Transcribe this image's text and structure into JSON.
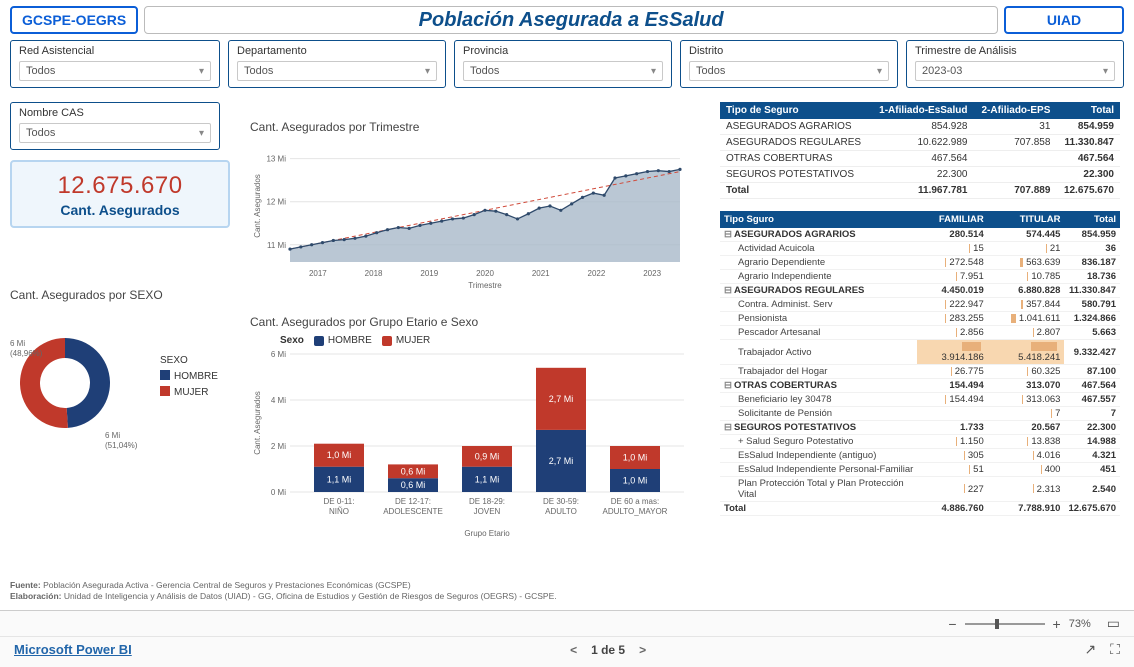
{
  "header": {
    "left_badge": "GCSPE-OEGRS",
    "title": "Población Asegurada a EsSalud",
    "right_badge": "UIAD"
  },
  "filters": {
    "red": {
      "label": "Red Asistencial",
      "value": "Todos"
    },
    "dep": {
      "label": "Departamento",
      "value": "Todos"
    },
    "prov": {
      "label": "Provincia",
      "value": "Todos"
    },
    "dist": {
      "label": "Distrito",
      "value": "Todos"
    },
    "trim": {
      "label": "Trimestre de Análisis",
      "value": "2023-03"
    },
    "cas": {
      "label": "Nombre CAS",
      "value": "Todos"
    }
  },
  "kpi": {
    "value": "12.675.670",
    "label": "Cant. Asegurados"
  },
  "colors": {
    "blue": "#1f3f77",
    "red": "#c0392b",
    "accent": "#0d4f8b",
    "area_fill": "#a9b9c9",
    "area_stroke": "#2f4a6b",
    "trend": "#d04a3a",
    "grid": "#e4e4e4"
  },
  "sexo_chart": {
    "title": "Cant. Asegurados por SEXO",
    "legend_title": "SEXO",
    "series": [
      {
        "name": "HOMBRE",
        "pct": 48.96,
        "value": "6 Mi",
        "label": "6 Mi\n(48,96%)",
        "color": "#1f3f77"
      },
      {
        "name": "MUJER",
        "pct": 51.04,
        "value": "6 Mi",
        "label": "6 Mi\n(51,04%)",
        "color": "#c0392b"
      }
    ]
  },
  "line_chart": {
    "title": "Cant. Asegurados por Trimestre",
    "y_title": "Cant. Asegurados",
    "x_title": "Trimestre",
    "y_ticks": [
      "11 Mi",
      "12 Mi",
      "13 Mi"
    ],
    "x_ticks": [
      "2017",
      "2018",
      "2019",
      "2020",
      "2021",
      "2022",
      "2023"
    ],
    "y_min": 10.6,
    "y_max": 13.2,
    "points": [
      10.9,
      10.95,
      11.0,
      11.05,
      11.1,
      11.12,
      11.15,
      11.2,
      11.28,
      11.35,
      11.4,
      11.38,
      11.45,
      11.5,
      11.55,
      11.6,
      11.62,
      11.7,
      11.8,
      11.78,
      11.7,
      11.6,
      11.72,
      11.85,
      11.9,
      11.8,
      11.95,
      12.1,
      12.2,
      12.15,
      12.55,
      12.6,
      12.65,
      12.7,
      12.72,
      12.7,
      12.75
    ]
  },
  "bar_chart": {
    "title": "Cant. Asegurados por Grupo Etario e Sexo",
    "legend_title": "Sexo",
    "y_title": "Cant. Asegurados",
    "x_title": "Grupo Etario",
    "y_ticks": [
      "0 Mi",
      "2 Mi",
      "4 Mi",
      "6 Mi"
    ],
    "y_max": 6,
    "categories": [
      {
        "label": "DE 0-11: NIÑO",
        "h": 1.1,
        "m": 1.0,
        "h_lbl": "1,1 Mi",
        "m_lbl": "1,0 Mi"
      },
      {
        "label": "DE 12-17: ADOLESCENTE",
        "h": 0.6,
        "m": 0.6,
        "h_lbl": "0,6 Mi",
        "m_lbl": "0,6 Mi"
      },
      {
        "label": "DE 18-29: JOVEN",
        "h": 1.1,
        "m": 0.9,
        "h_lbl": "1,1 Mi",
        "m_lbl": "0,9 Mi"
      },
      {
        "label": "DE 30-59: ADULTO",
        "h": 2.7,
        "m": 2.7,
        "h_lbl": "2,7 Mi",
        "m_lbl": "2,7 Mi"
      },
      {
        "label": "DE 60 a mas: ADULTO_MAYOR",
        "h": 1.0,
        "m": 1.0,
        "h_lbl": "1,0 Mi",
        "m_lbl": "1,0 Mi"
      }
    ]
  },
  "table1": {
    "columns": [
      "Tipo de Seguro",
      "1-Afiliado-EsSalud",
      "2-Afiliado-EPS",
      "Total"
    ],
    "rows": [
      [
        "ASEGURADOS AGRARIOS",
        "854.928",
        "31",
        "854.959"
      ],
      [
        "ASEGURADOS REGULARES",
        "10.622.989",
        "707.858",
        "11.330.847"
      ],
      [
        "OTRAS COBERTURAS",
        "467.564",
        "",
        "467.564"
      ],
      [
        "SEGUROS POTESTATIVOS",
        "22.300",
        "",
        "22.300"
      ]
    ],
    "total": [
      "Total",
      "11.967.781",
      "707.889",
      "12.675.670"
    ]
  },
  "table2": {
    "columns": [
      "Tipo Sguro",
      "FAMILIAR",
      "TITULAR",
      "Total"
    ],
    "groups": [
      {
        "name": "ASEGURADOS AGRARIOS",
        "vals": [
          "280.514",
          "574.445",
          "854.959"
        ],
        "rows": [
          [
            "Actividad Acuicola",
            "15",
            "21",
            "36"
          ],
          [
            "Agrario Dependiente",
            "272.548",
            "563.639",
            "836.187"
          ],
          [
            "Agrario Independiente",
            "7.951",
            "10.785",
            "18.736"
          ]
        ]
      },
      {
        "name": "ASEGURADOS REGULARES",
        "vals": [
          "4.450.019",
          "6.880.828",
          "11.330.847"
        ],
        "rows": [
          [
            "Contra. Administ. Serv",
            "222.947",
            "357.844",
            "580.791"
          ],
          [
            "Pensionista",
            "283.255",
            "1.041.611",
            "1.324.866"
          ],
          [
            "Pescador Artesanal",
            "2.856",
            "2.807",
            "5.663"
          ],
          [
            "Trabajador Activo",
            "3.914.186",
            "5.418.241",
            "9.332.427"
          ],
          [
            "Trabajador del Hogar",
            "26.775",
            "60.325",
            "87.100"
          ]
        ],
        "highlight_row": 3
      },
      {
        "name": "OTRAS COBERTURAS",
        "vals": [
          "154.494",
          "313.070",
          "467.564"
        ],
        "rows": [
          [
            "Beneficiario ley 30478",
            "154.494",
            "313.063",
            "467.557"
          ],
          [
            "Solicitante de Pensión",
            "",
            "7",
            "7"
          ]
        ]
      },
      {
        "name": "SEGUROS POTESTATIVOS",
        "vals": [
          "1.733",
          "20.567",
          "22.300"
        ],
        "rows": [
          [
            "+ Salud Seguro Potestativo",
            "1.150",
            "13.838",
            "14.988"
          ],
          [
            "EsSalud Independiente (antiguo)",
            "305",
            "4.016",
            "4.321"
          ],
          [
            "EsSalud Independiente Personal-Familiar",
            "51",
            "400",
            "451"
          ],
          [
            "Plan Protección Total y Plan Protección Vital",
            "227",
            "2.313",
            "2.540"
          ]
        ]
      }
    ],
    "total": [
      "Total",
      "4.886.760",
      "7.788.910",
      "12.675.670"
    ]
  },
  "footer": {
    "line1": "Fuente: Población Asegurada Activa - Gerencia Central de Seguros y Prestaciones Económicas (GCSPE)",
    "line2": "Elaboración: Unidad de Inteligencia y Análisis de Datos (UIAD) - GG, Oficina de Estudios y Gestión de Riesgos de Seguros (OEGRS) - GCSPE."
  },
  "statusbar": {
    "zoom": "73%",
    "brand": "Microsoft Power BI",
    "page": "1 de 5"
  }
}
